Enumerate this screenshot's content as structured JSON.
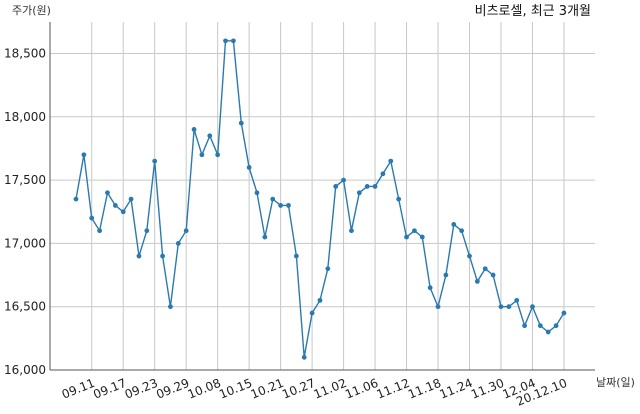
{
  "chart_data": {
    "type": "line",
    "title": "비츠로셀, 최근 3개월",
    "xlabel": "날짜(일)",
    "ylabel": "주가(원)",
    "ylim": [
      16000,
      18800
    ],
    "yticks": [
      16000,
      16500,
      17000,
      17500,
      18000,
      18500
    ],
    "ytick_labels": [
      "16,000",
      "16,500",
      "17,000",
      "17,500",
      "18,000",
      "18,500"
    ],
    "xtick_labels": [
      "09.11",
      "09.17",
      "09.23",
      "09.29",
      "10.08",
      "10.15",
      "10.21",
      "10.27",
      "11.02",
      "11.06",
      "11.12",
      "11.18",
      "11.24",
      "11.30",
      "12.04",
      "20.12.10"
    ],
    "xtick_index": [
      2,
      6,
      10,
      14,
      18,
      22,
      26,
      30,
      34,
      38,
      42,
      46,
      50,
      54,
      58,
      62
    ],
    "grid": true,
    "series_color": "#2a7ab0",
    "series": [
      {
        "values": [
          17350,
          17700,
          17200,
          17100,
          17400,
          17300,
          17250,
          17350,
          16900,
          17100,
          17650,
          16900,
          16500,
          17000,
          17100,
          17900,
          17700,
          17850,
          17700,
          18600,
          18600,
          17950,
          17600,
          17400,
          17050,
          17350,
          17300,
          17300,
          16900,
          16100,
          16450,
          16550,
          16800,
          17450,
          17500,
          17100,
          17400,
          17450,
          17450,
          17550,
          17650,
          17350,
          17050,
          17100,
          17050,
          16650,
          16500,
          16750,
          17150,
          17100,
          16900,
          16700,
          16800,
          16750,
          16500,
          16500,
          16550,
          16350,
          16500,
          16350,
          16300,
          16350,
          16450
        ]
      }
    ]
  }
}
